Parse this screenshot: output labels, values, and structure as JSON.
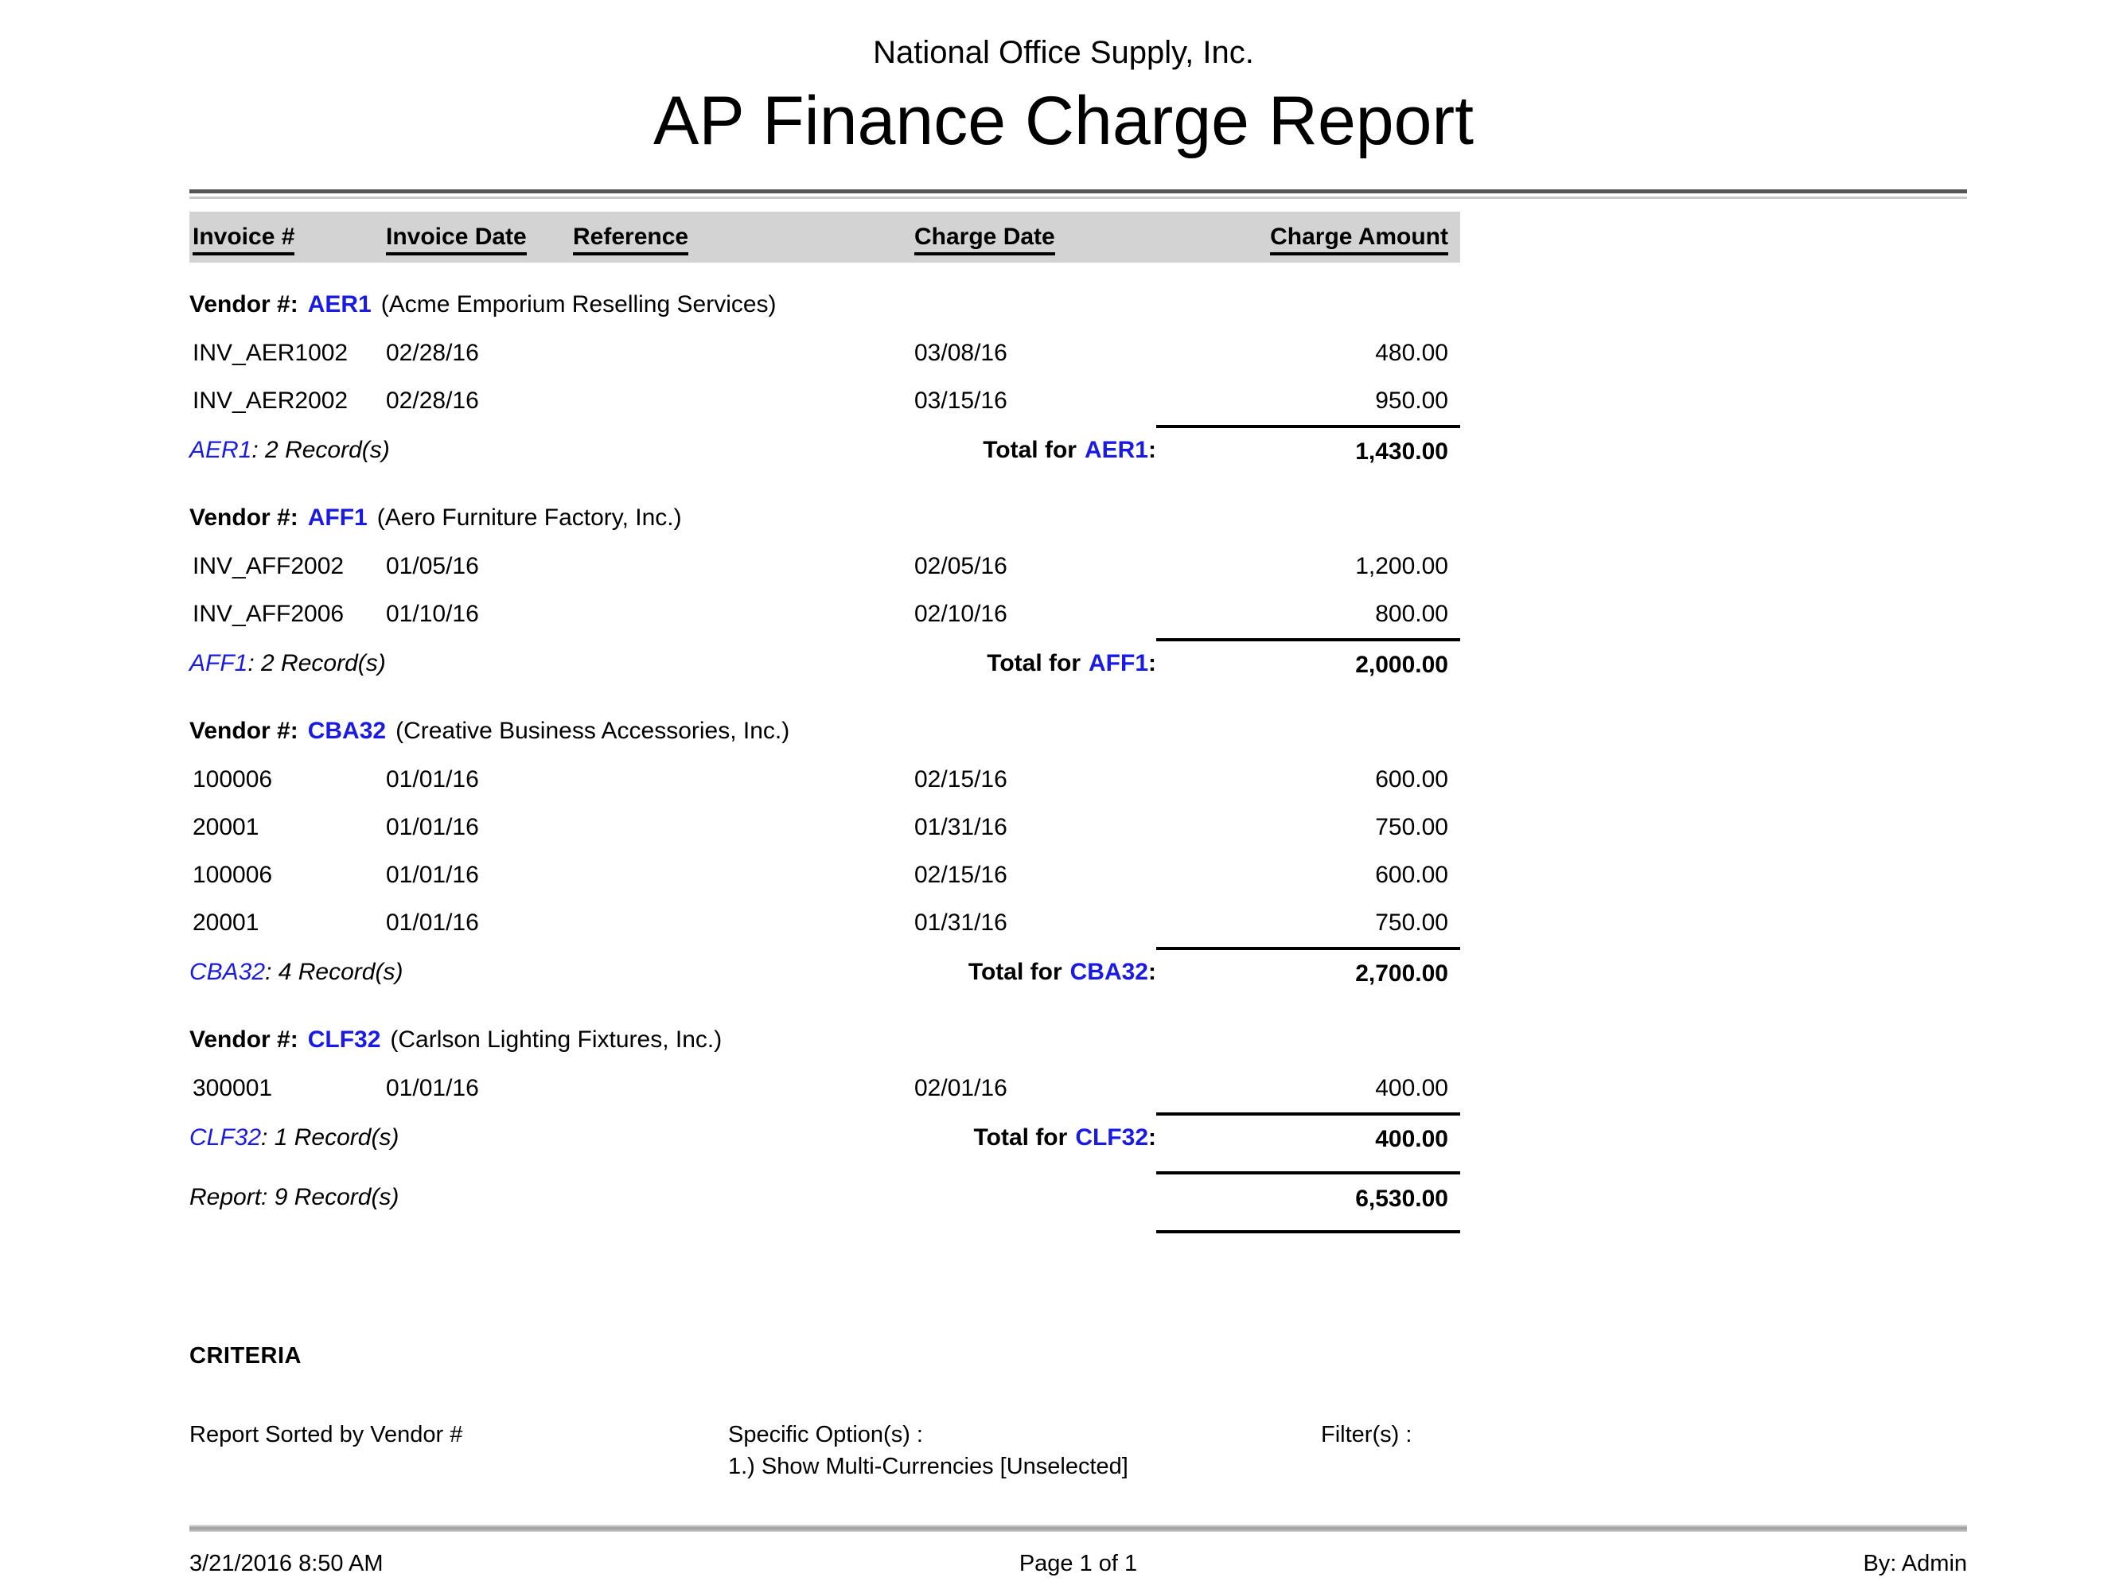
{
  "report": {
    "company": "National Office Supply, Inc.",
    "title": "AP Finance Charge Report",
    "columns": [
      "Invoice #",
      "Invoice Date",
      "Reference",
      "Charge Date",
      "Charge Amount"
    ],
    "labels": {
      "vendor_prefix": "Vendor #:",
      "total_for": "Total for",
      "colon": ":"
    },
    "groups": [
      {
        "code": "AER1",
        "name": "(Acme Emporium Reselling Services)",
        "rows": [
          {
            "invoice": "INV_AER1002",
            "invoice_date": "02/28/16",
            "reference": "",
            "charge_date": "03/08/16",
            "amount": "480.00"
          },
          {
            "invoice": "INV_AER2002",
            "invoice_date": "02/28/16",
            "reference": "",
            "charge_date": "03/15/16",
            "amount": "950.00"
          }
        ],
        "count_suffix": ": 2 Record(s)",
        "total": "1,430.00"
      },
      {
        "code": "AFF1",
        "name": "(Aero Furniture Factory, Inc.)",
        "rows": [
          {
            "invoice": "INV_AFF2002",
            "invoice_date": "01/05/16",
            "reference": "",
            "charge_date": "02/05/16",
            "amount": "1,200.00"
          },
          {
            "invoice": "INV_AFF2006",
            "invoice_date": "01/10/16",
            "reference": "",
            "charge_date": "02/10/16",
            "amount": "800.00"
          }
        ],
        "count_suffix": ": 2 Record(s)",
        "total": "2,000.00"
      },
      {
        "code": "CBA32",
        "name": "(Creative Business Accessories, Inc.)",
        "rows": [
          {
            "invoice": "100006",
            "invoice_date": "01/01/16",
            "reference": "",
            "charge_date": "02/15/16",
            "amount": "600.00"
          },
          {
            "invoice": "20001",
            "invoice_date": "01/01/16",
            "reference": "",
            "charge_date": "01/31/16",
            "amount": "750.00"
          },
          {
            "invoice": "100006",
            "invoice_date": "01/01/16",
            "reference": "",
            "charge_date": "02/15/16",
            "amount": "600.00"
          },
          {
            "invoice": "20001",
            "invoice_date": "01/01/16",
            "reference": "",
            "charge_date": "01/31/16",
            "amount": "750.00"
          }
        ],
        "count_suffix": ": 4 Record(s)",
        "total": "2,700.00"
      },
      {
        "code": "CLF32",
        "name": "(Carlson Lighting Fixtures, Inc.)",
        "rows": [
          {
            "invoice": "300001",
            "invoice_date": "01/01/16",
            "reference": "",
            "charge_date": "02/01/16",
            "amount": "400.00"
          }
        ],
        "count_suffix": ": 1 Record(s)",
        "total": "400.00"
      }
    ],
    "report_total": {
      "label": "Report: 9 Record(s)",
      "amount": "6,530.00"
    },
    "criteria": {
      "heading": "CRITERIA",
      "sorted_by": "Report Sorted by Vendor #",
      "specific_options_label": "Specific Option(s) :",
      "specific_options": [
        "1.) Show Multi-Currencies [Unselected]"
      ],
      "filters_label": "Filter(s) :"
    },
    "footer": {
      "datetime": "3/21/2016 8:50 AM",
      "page": "Page 1 of 1",
      "by": "By: Admin"
    }
  },
  "colors": {
    "link_blue": "#1a1ae6",
    "header_bar": "#d3d3d3"
  }
}
